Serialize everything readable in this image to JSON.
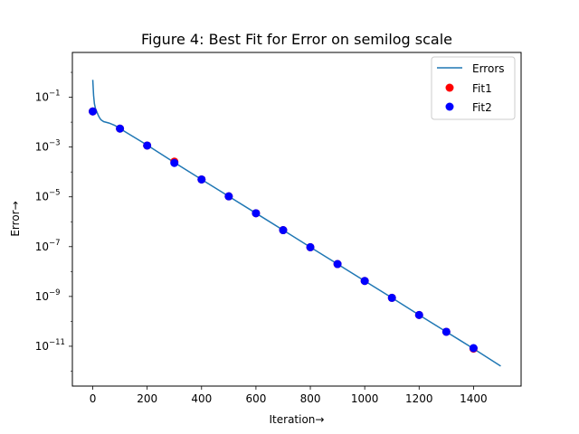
{
  "chart_data": {
    "type": "line",
    "title": "Figure 4: Best Fit for Error on semilog scale",
    "xlabel": "Iteration→",
    "ylabel": "Error→",
    "xlim": [
      -75,
      1575
    ],
    "ylim_exp": [
      -12.6,
      0.8
    ],
    "yscale": "log",
    "x_ticks": [
      0,
      200,
      400,
      600,
      800,
      1000,
      1200,
      1400
    ],
    "y_ticks": [
      {
        "base": "10",
        "exp": "−11",
        "value_exp": -11
      },
      {
        "base": "10",
        "exp": "−9",
        "value_exp": -9
      },
      {
        "base": "10",
        "exp": "−7",
        "value_exp": -7
      },
      {
        "base": "10",
        "exp": "−5",
        "value_exp": -5
      },
      {
        "base": "10",
        "exp": "−3",
        "value_exp": -3
      },
      {
        "base": "10",
        "exp": "−1",
        "value_exp": -1
      }
    ],
    "legend_position": "top-right",
    "series": [
      {
        "name": "Errors",
        "kind": "line",
        "color": "#1f77b4",
        "points": [
          [
            0,
            0.5
          ],
          [
            3,
            0.12
          ],
          [
            6,
            0.055
          ],
          [
            10,
            0.035
          ],
          [
            15,
            0.026
          ],
          [
            20,
            0.019
          ],
          [
            25,
            0.015
          ],
          [
            30,
            0.0125
          ],
          [
            40,
            0.0105
          ],
          [
            60,
            0.0092
          ],
          [
            80,
            0.0075
          ],
          [
            100,
            0.0055
          ],
          [
            200,
            0.0012
          ],
          [
            300,
            0.00024
          ],
          [
            400,
            5e-05
          ],
          [
            500,
            1.05e-05
          ],
          [
            600,
            2.2e-06
          ],
          [
            700,
            4.6e-07
          ],
          [
            800,
            9.5e-08
          ],
          [
            900,
            2e-08
          ],
          [
            1000,
            4.2e-09
          ],
          [
            1100,
            8.8e-10
          ],
          [
            1200,
            1.8e-10
          ],
          [
            1300,
            3.8e-11
          ],
          [
            1400,
            8e-12
          ],
          [
            1500,
            1.6e-12
          ]
        ]
      },
      {
        "name": "Fit1",
        "kind": "scatter",
        "color": "#ff0000",
        "points": [
          [
            0,
            0.027
          ],
          [
            100,
            0.0055
          ],
          [
            200,
            0.00115
          ],
          [
            300,
            0.00026
          ],
          [
            400,
            5e-05
          ],
          [
            500,
            1.05e-05
          ],
          [
            600,
            2.2e-06
          ],
          [
            700,
            4.6e-07
          ],
          [
            800,
            9.5e-08
          ],
          [
            900,
            2e-08
          ],
          [
            1000,
            4.2e-09
          ],
          [
            1100,
            8.8e-10
          ],
          [
            1200,
            1.8e-10
          ],
          [
            1300,
            3.8e-11
          ],
          [
            1400,
            8e-12
          ]
        ]
      },
      {
        "name": "Fit2",
        "kind": "scatter",
        "color": "#0000ff",
        "points": [
          [
            0,
            0.027
          ],
          [
            100,
            0.0055
          ],
          [
            200,
            0.00115
          ],
          [
            300,
            0.00023
          ],
          [
            400,
            5e-05
          ],
          [
            500,
            1.05e-05
          ],
          [
            600,
            2.2e-06
          ],
          [
            700,
            4.6e-07
          ],
          [
            800,
            9.5e-08
          ],
          [
            900,
            2e-08
          ],
          [
            1000,
            4.2e-09
          ],
          [
            1100,
            8.8e-10
          ],
          [
            1200,
            1.8e-10
          ],
          [
            1300,
            3.8e-11
          ],
          [
            1400,
            8.4e-12
          ]
        ]
      }
    ]
  }
}
